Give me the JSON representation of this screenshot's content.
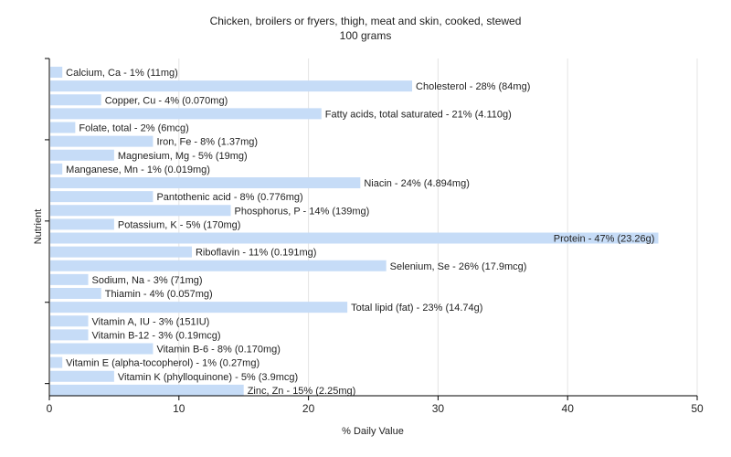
{
  "chart_data": {
    "type": "bar",
    "orientation": "horizontal",
    "title": "Chicken, broilers or fryers, thigh, meat and skin, cooked, stewed",
    "subtitle": "100 grams",
    "xlabel": "% Daily Value",
    "ylabel": "Nutrient",
    "xlim": [
      0,
      50
    ],
    "xticks": [
      0,
      10,
      20,
      30,
      40,
      50
    ],
    "grid": true,
    "bar_color": "#c6dcf7",
    "categories": [
      "Calcium, Ca",
      "Cholesterol",
      "Copper, Cu",
      "Fatty acids, total saturated",
      "Folate, total",
      "Iron, Fe",
      "Magnesium, Mg",
      "Manganese, Mn",
      "Niacin",
      "Pantothenic acid",
      "Phosphorus, P",
      "Potassium, K",
      "Protein",
      "Riboflavin",
      "Selenium, Se",
      "Sodium, Na",
      "Thiamin",
      "Total lipid (fat)",
      "Vitamin A, IU",
      "Vitamin B-12",
      "Vitamin B-6",
      "Vitamin E (alpha-tocopherol)",
      "Vitamin K (phylloquinone)",
      "Zinc, Zn"
    ],
    "values": [
      1,
      28,
      4,
      21,
      2,
      8,
      5,
      1,
      24,
      8,
      14,
      5,
      47,
      11,
      26,
      3,
      4,
      23,
      3,
      3,
      8,
      1,
      5,
      15
    ],
    "labels": [
      "Calcium, Ca - 1% (11mg)",
      "Cholesterol - 28% (84mg)",
      "Copper, Cu - 4% (0.070mg)",
      "Fatty acids, total saturated - 21% (4.110g)",
      "Folate, total - 2% (6mcg)",
      "Iron, Fe - 8% (1.37mg)",
      "Magnesium, Mg - 5% (19mg)",
      "Manganese, Mn - 1% (0.019mg)",
      "Niacin - 24% (4.894mg)",
      "Pantothenic acid - 8% (0.776mg)",
      "Phosphorus, P - 14% (139mg)",
      "Potassium, K - 5% (170mg)",
      "Protein - 47% (23.26g)",
      "Riboflavin - 11% (0.191mg)",
      "Selenium, Se - 26% (17.9mcg)",
      "Sodium, Na - 3% (71mg)",
      "Thiamin - 4% (0.057mg)",
      "Total lipid (fat) - 23% (14.74g)",
      "Vitamin A, IU - 3% (151IU)",
      "Vitamin B-12 - 3% (0.19mcg)",
      "Vitamin B-6 - 8% (0.170mg)",
      "Vitamin E (alpha-tocopherol) - 1% (0.27mg)",
      "Vitamin K (phylloquinone) - 5% (3.9mcg)",
      "Zinc, Zn - 15% (2.25mg)"
    ],
    "label_inside": [
      false,
      false,
      false,
      false,
      false,
      false,
      false,
      false,
      false,
      false,
      false,
      false,
      true,
      false,
      false,
      false,
      false,
      false,
      false,
      false,
      false,
      false,
      false,
      false
    ]
  }
}
